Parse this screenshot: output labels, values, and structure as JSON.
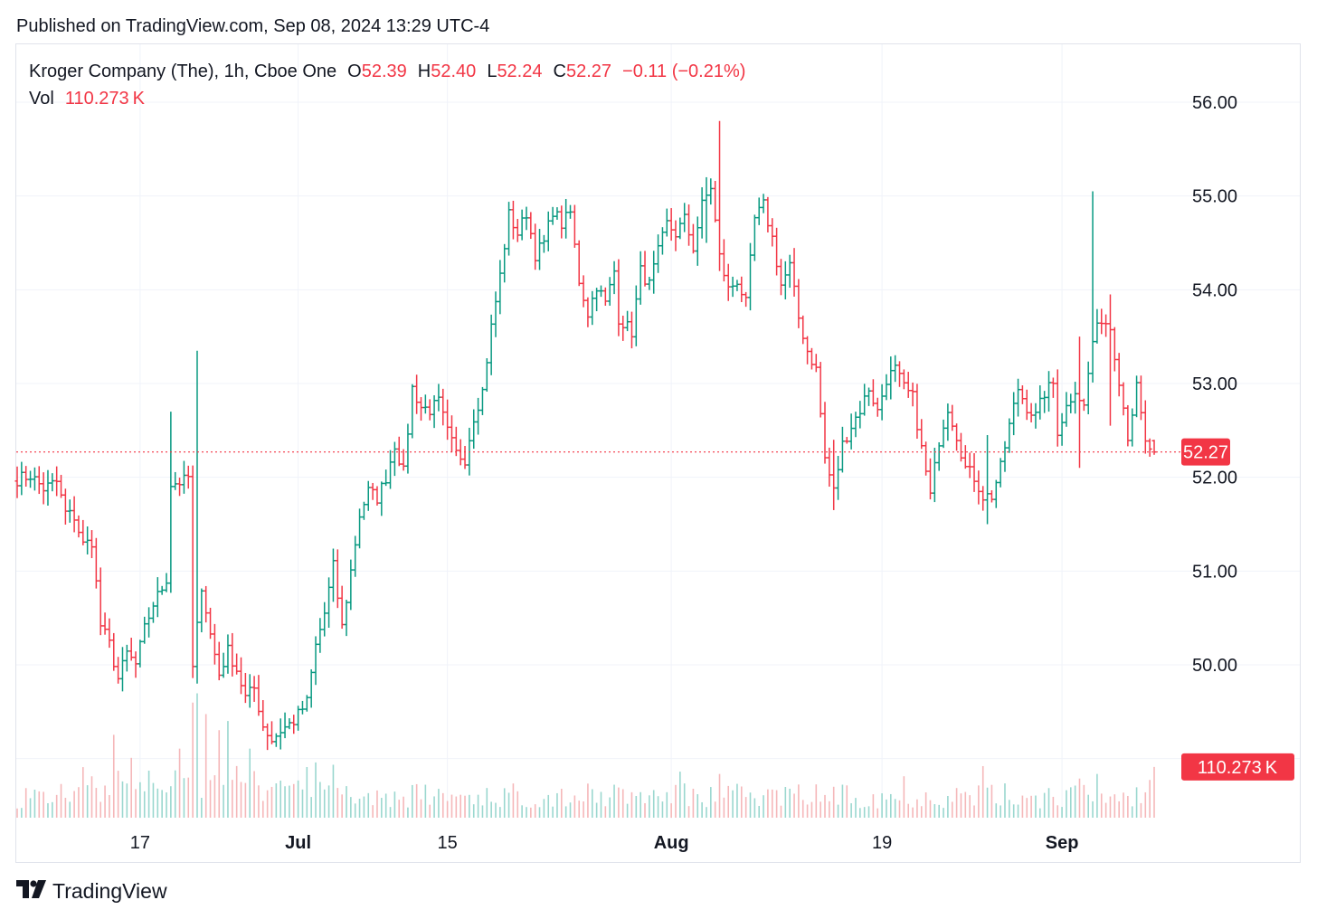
{
  "header": {
    "published": "Published on TradingView.com, Sep 08, 2024 13:29 UTC-4"
  },
  "legend": {
    "symbol": "Kroger Company (The), 1h, Cboe One",
    "open_label": "O",
    "open": "52.39",
    "high_label": "H",
    "high": "52.40",
    "low_label": "L",
    "low": "52.24",
    "close_label": "C",
    "close": "52.27",
    "change": "−0.11 (−0.21%)",
    "vol_label": "Vol",
    "vol": "110.273 K"
  },
  "footer": {
    "brand": "TradingView",
    "logo_icon": "tradingview-logo-icon"
  },
  "colors": {
    "up": "#089981",
    "down": "#f23645",
    "up_vol": "#9ad7cf",
    "down_vol": "#f5b7b9",
    "grid": "#f0f3fa",
    "text": "#131722"
  },
  "chart_data": {
    "type": "ohlc",
    "interval": "1h",
    "y_axis": {
      "ticks": [
        "56.00",
        "55.00",
        "54.00",
        "53.00",
        "52.00",
        "51.00",
        "50.00"
      ],
      "range": [
        49.05,
        56.42
      ],
      "side": "right"
    },
    "x_axis": {
      "ticks": [
        "17",
        "Jul",
        "15",
        "Aug",
        "19",
        "Sep"
      ],
      "tick_bars": [
        28,
        64,
        98,
        149,
        197,
        238
      ]
    },
    "last_price": {
      "value": 52.27,
      "label": "52.27"
    },
    "last_volume": {
      "value": 110.273,
      "label": "110.273 K"
    },
    "volume_max": 275,
    "anchors": [
      [
        0,
        51.98
      ],
      [
        3,
        52.02
      ],
      [
        6,
        51.88
      ],
      [
        9,
        51.95
      ],
      [
        11,
        51.62
      ],
      [
        13,
        51.58
      ],
      [
        15,
        51.28
      ],
      [
        17,
        51.32
      ],
      [
        19,
        50.42
      ],
      [
        21,
        50.22
      ],
      [
        23,
        49.85
      ],
      [
        25,
        50.12
      ],
      [
        27,
        50.0
      ],
      [
        29,
        50.38
      ],
      [
        31,
        50.65
      ],
      [
        33,
        50.82
      ],
      [
        34,
        50.92
      ],
      [
        35,
        51.93
      ],
      [
        38,
        51.96
      ],
      [
        39,
        52.0
      ],
      [
        40,
        49.95
      ],
      [
        42,
        50.85
      ],
      [
        44,
        50.32
      ],
      [
        46,
        49.9
      ],
      [
        48,
        50.15
      ],
      [
        50,
        49.95
      ],
      [
        52,
        49.65
      ],
      [
        54,
        49.75
      ],
      [
        56,
        49.35
      ],
      [
        58,
        49.2
      ],
      [
        60,
        49.3
      ],
      [
        63,
        49.4
      ],
      [
        66,
        49.6
      ],
      [
        68,
        50.2
      ],
      [
        70,
        50.55
      ],
      [
        72,
        51.05
      ],
      [
        74,
        50.4
      ],
      [
        76,
        51.0
      ],
      [
        78,
        51.6
      ],
      [
        80,
        51.85
      ],
      [
        82,
        51.78
      ],
      [
        84,
        52.0
      ],
      [
        86,
        52.35
      ],
      [
        88,
        52.05
      ],
      [
        90,
        52.95
      ],
      [
        92,
        52.75
      ],
      [
        94,
        52.72
      ],
      [
        96,
        52.8
      ],
      [
        98,
        52.48
      ],
      [
        100,
        52.25
      ],
      [
        102,
        52.2
      ],
      [
        104,
        52.65
      ],
      [
        106,
        52.92
      ],
      [
        108,
        53.6
      ],
      [
        110,
        54.15
      ],
      [
        112,
        54.8
      ],
      [
        114,
        54.6
      ],
      [
        116,
        54.82
      ],
      [
        118,
        54.38
      ],
      [
        120,
        54.5
      ],
      [
        122,
        54.85
      ],
      [
        124,
        54.7
      ],
      [
        126,
        54.82
      ],
      [
        128,
        54.1
      ],
      [
        130,
        53.75
      ],
      [
        132,
        54.05
      ],
      [
        134,
        53.85
      ],
      [
        136,
        54.2
      ],
      [
        137,
        53.7
      ],
      [
        140,
        53.55
      ],
      [
        142,
        54.2
      ],
      [
        144,
        54.05
      ],
      [
        146,
        54.4
      ],
      [
        148,
        54.7
      ],
      [
        150,
        54.6
      ],
      [
        152,
        54.75
      ],
      [
        154,
        54.45
      ],
      [
        156,
        54.9
      ],
      [
        158,
        55.1
      ],
      [
        160,
        54.35
      ],
      [
        162,
        54.0
      ],
      [
        164,
        54.1
      ],
      [
        166,
        53.85
      ],
      [
        168,
        54.75
      ],
      [
        170,
        54.9
      ],
      [
        172,
        54.55
      ],
      [
        174,
        54.05
      ],
      [
        176,
        54.25
      ],
      [
        178,
        53.7
      ],
      [
        180,
        53.35
      ],
      [
        182,
        53.15
      ],
      [
        184,
        52.2
      ],
      [
        186,
        51.85
      ],
      [
        188,
        52.35
      ],
      [
        190,
        52.55
      ],
      [
        192,
        52.72
      ],
      [
        194,
        52.95
      ],
      [
        196,
        52.7
      ],
      [
        198,
        53.05
      ],
      [
        200,
        53.15
      ],
      [
        202,
        52.95
      ],
      [
        204,
        52.85
      ],
      [
        206,
        52.3
      ],
      [
        208,
        51.8
      ],
      [
        210,
        52.4
      ],
      [
        212,
        52.75
      ],
      [
        214,
        52.45
      ],
      [
        216,
        52.1
      ],
      [
        218,
        52.0
      ],
      [
        220,
        51.8
      ],
      [
        222,
        51.8
      ],
      [
        224,
        52.1
      ],
      [
        226,
        52.55
      ],
      [
        228,
        52.95
      ],
      [
        230,
        52.75
      ],
      [
        232,
        52.65
      ],
      [
        234,
        52.9
      ],
      [
        236,
        53.0
      ],
      [
        237,
        52.5
      ],
      [
        239,
        52.75
      ],
      [
        241,
        52.95
      ],
      [
        243,
        52.75
      ],
      [
        245,
        53.45
      ],
      [
        247,
        53.7
      ],
      [
        249,
        53.6
      ],
      [
        251,
        53.05
      ],
      [
        253,
        52.45
      ],
      [
        255,
        52.95
      ],
      [
        257,
        52.35
      ],
      [
        259,
        52.27
      ]
    ],
    "wicks": [
      [
        35,
        52.7,
        51.8
      ],
      [
        41,
        53.35,
        49.8
      ],
      [
        157,
        55.2,
        54.5
      ],
      [
        160,
        55.8,
        54.2
      ],
      [
        221,
        52.45,
        51.5
      ],
      [
        245,
        55.05,
        53.45
      ],
      [
        186,
        52.4,
        51.65
      ],
      [
        242,
        53.5,
        52.1
      ],
      [
        249,
        53.95,
        52.55
      ]
    ]
  }
}
